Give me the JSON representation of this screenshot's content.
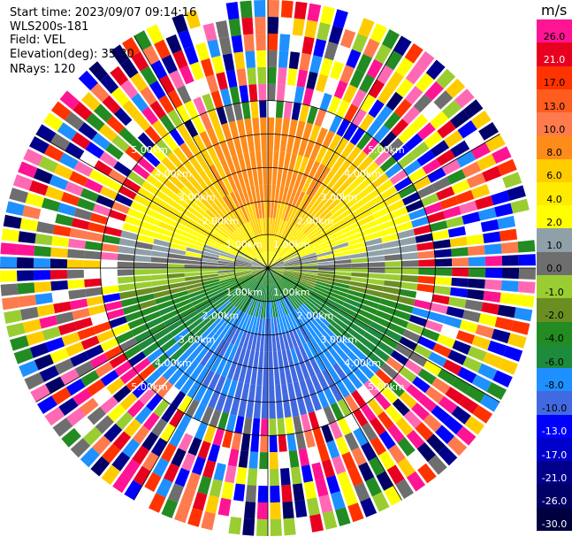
{
  "header": {
    "start_time": "Start time: 2023/09/07 09:14:16",
    "instrument": "WLS200s-181",
    "field": "Field: VEL",
    "elevation": "Elevation(deg): 35.30",
    "nrays": "NRays: 120"
  },
  "colorbar": {
    "unit": "m/s",
    "levels": [
      {
        "label": "26.0",
        "color": "#ff1493",
        "text_color": "#000000"
      },
      {
        "label": "21.0",
        "color": "#e8001f",
        "text_color": "#ffffff"
      },
      {
        "label": "17.0",
        "color": "#ff3300",
        "text_color": "#000000"
      },
      {
        "label": "13.0",
        "color": "#ff5c1f",
        "text_color": "#000000"
      },
      {
        "label": "10.0",
        "color": "#ff7a4c",
        "text_color": "#000000"
      },
      {
        "label": "8.0",
        "color": "#ff8c1a",
        "text_color": "#000000"
      },
      {
        "label": "6.0",
        "color": "#ffcc00",
        "text_color": "#000000"
      },
      {
        "label": "4.0",
        "color": "#ffea00",
        "text_color": "#000000"
      },
      {
        "label": "2.0",
        "color": "#ffff00",
        "text_color": "#000000"
      },
      {
        "label": "1.0",
        "color": "#8fa0a8",
        "text_color": "#000000"
      },
      {
        "label": "0.0",
        "color": "#6e6e6e",
        "text_color": "#000000"
      },
      {
        "label": "-1.0",
        "color": "#9acd32",
        "text_color": "#000000"
      },
      {
        "label": "-2.0",
        "color": "#6b8e23",
        "text_color": "#000000"
      },
      {
        "label": "-4.0",
        "color": "#228b22",
        "text_color": "#000000"
      },
      {
        "label": "-6.0",
        "color": "#1e8a3c",
        "text_color": "#000000"
      },
      {
        "label": "-8.0",
        "color": "#1e90ff",
        "text_color": "#000000"
      },
      {
        "label": "-10.0",
        "color": "#4169e1",
        "text_color": "#000000"
      },
      {
        "label": "-13.0",
        "color": "#0000ff",
        "text_color": "#ffffff"
      },
      {
        "label": "-17.0",
        "color": "#0000cd",
        "text_color": "#ffffff"
      },
      {
        "label": "-21.0",
        "color": "#00008b",
        "text_color": "#ffffff"
      },
      {
        "label": "-26.0",
        "color": "#000066",
        "text_color": "#ffffff"
      },
      {
        "label": "-30.0",
        "color": "#000040",
        "text_color": "#ffffff"
      }
    ]
  },
  "chart_data": {
    "type": "heatmap",
    "projection": "polar-ppi",
    "nrays": 120,
    "gates": 16,
    "gate_km": 0.5,
    "max_range_km": 8.0,
    "range_rings_km": [
      1.0,
      2.0,
      3.0,
      4.0,
      5.0
    ],
    "ring_labels": [
      "1.00km",
      "2.00km",
      "3.00km",
      "4.00km",
      "5.00km"
    ],
    "spoke_angles_deg": [
      0,
      30,
      60,
      90,
      120,
      150,
      180,
      210,
      240,
      270,
      300,
      330
    ],
    "velocity_field": {
      "description_amplitude_ms": 9,
      "peak_positive_azimuth_deg": 0,
      "valid_range_km": 4.6
    },
    "noise_colors": [
      "#ff1493",
      "#e8001f",
      "#ff3300",
      "#ff7a4c",
      "#ffff00",
      "#228b22",
      "#1e90ff",
      "#0000ff",
      "#000066",
      "#9acd32",
      "#ffcc00",
      "#6e6e6e",
      "#ffffff",
      "#ff69b4",
      "#00008b"
    ]
  }
}
